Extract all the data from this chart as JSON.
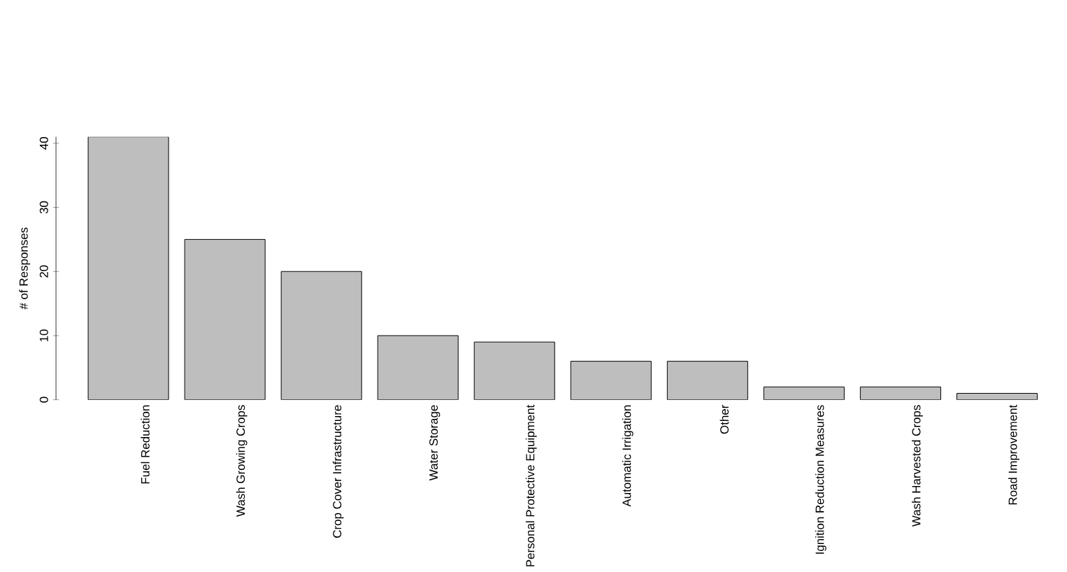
{
  "chart_data": {
    "type": "bar",
    "ylabel": "# of Responses",
    "categories": [
      "Fuel Reduction",
      "Wash Growing Crops",
      "Crop Cover Infrastructure",
      "Water Storage",
      "Personal Protective Equipment",
      "Automatic Irrigation",
      "Other",
      "Ignition Reduction Measures",
      "Wash Harvested Crops",
      "Road Improvement"
    ],
    "values": [
      41,
      25,
      20,
      10,
      9,
      6,
      6,
      2,
      2,
      1
    ],
    "color": "#bebebe",
    "ylim": [
      0,
      41
    ],
    "yticks": [
      0,
      10,
      20,
      30,
      40
    ]
  }
}
